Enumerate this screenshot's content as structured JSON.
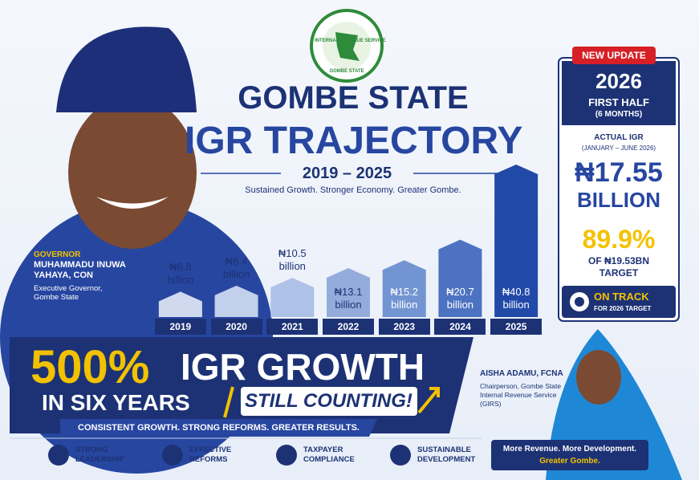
{
  "logo": {
    "top": "INTERNAL REVENUE SERVICE",
    "bottom": "GOMBE STATE"
  },
  "chart_data": {
    "type": "bar",
    "title": "GOMBE STATE",
    "subtitle": "IGR TRAJECTORY",
    "period": "2019 – 2025",
    "tagline": "Sustained Growth. Stronger Economy. Greater Gombe.",
    "categories": [
      "2019",
      "2020",
      "2021",
      "2022",
      "2023",
      "2024",
      "2025"
    ],
    "values": [
      6.8,
      8.4,
      10.5,
      13.1,
      15.2,
      20.7,
      40.8
    ],
    "value_labels": [
      "₦6.8 billion",
      "₦8.4 billion",
      "₦10.5 billion",
      "₦13.1 billion",
      "₦15.2 billion",
      "₦20.7 billion",
      "₦40.8 billion"
    ],
    "colors": [
      "#cfdaef",
      "#c2d0eb",
      "#aec1e6",
      "#94acdc",
      "#7394d2",
      "#4d72c2",
      "#2149a8"
    ]
  },
  "governor": {
    "role": "GOVERNOR",
    "name": "MUHAMMADU INUWA YAHAYA, CON",
    "position": "Executive Governor, Gombe State"
  },
  "update_panel": {
    "badge": "NEW UPDATE",
    "year": "2026",
    "period": "FIRST HALF",
    "months": "(6 MONTHS)",
    "actual_label": "ACTUAL IGR",
    "actual_range": "(JANUARY – JUNE 2026)",
    "amount": "₦17.55",
    "amount_unit": "BILLION",
    "percent": "89.9%",
    "target": "OF ₦19.53BN TARGET",
    "status": "ON TRACK",
    "status_note": "FOR 2026 TARGET"
  },
  "banner": {
    "headline_number": "500%",
    "headline": "IGR GROWTH",
    "line2": "IN SIX YEARS",
    "counting": "STILL COUNTING!",
    "tagline": "CONSISTENT GROWTH. STRONG REFORMS. GREATER RESULTS."
  },
  "chairperson": {
    "name": "AISHA ADAMU, FCNA",
    "role": "Chairperson, Gombe State Internal Revenue Service (GIRS)"
  },
  "pillars": [
    "STRONG LEADERSHIP",
    "EFFECTIVE REFORMS",
    "TAXPAYER COMPLIANCE",
    "SUSTAINABLE DEVELOPMENT"
  ],
  "footer": {
    "line1": "More Revenue. More Development.",
    "line2": "Greater Gombe."
  }
}
